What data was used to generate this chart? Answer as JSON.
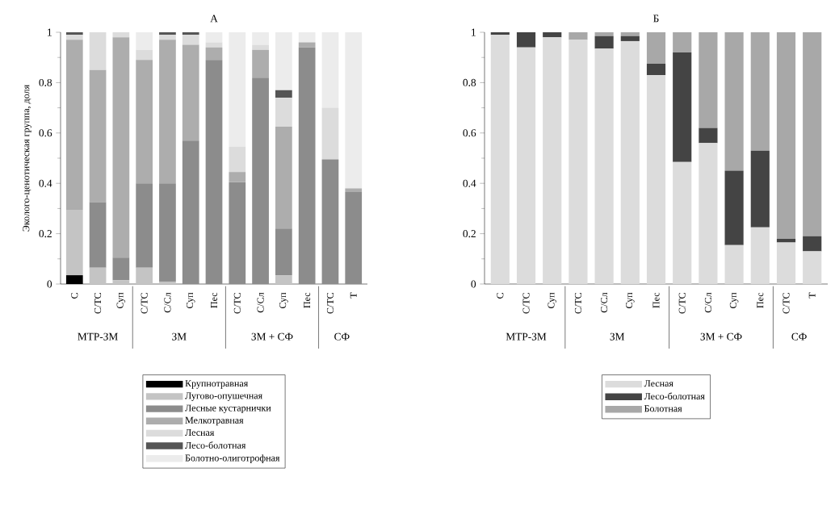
{
  "chart_data": [
    {
      "type": "bar",
      "stacked": true,
      "title": "А",
      "ylabel": "Эколого-ценотическая группа, доля",
      "categories": [
        "С",
        "С/ТС",
        "Суп",
        "С/ТС",
        "С/Сл",
        "Суп",
        "Пес",
        "С/ТС",
        "С/Сл",
        "Суп",
        "Пес",
        "С/ТС",
        "Т"
      ],
      "series": [
        {
          "name": "Крупнотравная",
          "color": "#000000",
          "values": [
            0.035,
            0,
            0,
            0,
            0,
            0,
            0,
            0,
            0,
            0,
            0,
            0,
            0
          ]
        },
        {
          "name": "Лугово-опушечная",
          "color": "#c4c4c4",
          "values": [
            0.26,
            0.065,
            0.015,
            0.065,
            0.01,
            0,
            0,
            0,
            0,
            0.035,
            0,
            0,
            0
          ]
        },
        {
          "name": "Лесные кустарнички",
          "color": "#8c8c8c",
          "values": [
            0,
            0.26,
            0.09,
            0.335,
            0.39,
            0.57,
            0.89,
            0.405,
            0.82,
            0.185,
            0.94,
            0.495,
            0.365
          ]
        },
        {
          "name": "Мелкотравная",
          "color": "#adadad",
          "values": [
            0.675,
            0.525,
            0.875,
            0.49,
            0.57,
            0.38,
            0.05,
            0.04,
            0.11,
            0.405,
            0.02,
            0,
            0.015
          ]
        },
        {
          "name": "Лесная",
          "color": "#dcdcdc",
          "values": [
            0.02,
            0.15,
            0.02,
            0.04,
            0.02,
            0.04,
            0.02,
            0.1,
            0.02,
            0.115,
            0,
            0.205,
            0
          ]
        },
        {
          "name": "Лесо-болотная",
          "color": "#555555",
          "values": [
            0.01,
            0,
            0,
            0,
            0.01,
            0.01,
            0,
            0,
            0,
            0.03,
            0,
            0,
            0
          ]
        },
        {
          "name": "Болотно-олиготрофная",
          "color": "#ececec",
          "values": [
            0,
            0,
            0,
            0.07,
            0,
            0,
            0.04,
            0.455,
            0.05,
            0.23,
            0.04,
            0.3,
            0.62
          ]
        }
      ],
      "ylim": [
        0,
        1
      ],
      "yticks": [
        0,
        0.2,
        0.4,
        0.6,
        0.8,
        1
      ],
      "legend": "bottom",
      "annotations": [
        "МТР-ЗМ",
        "ЗМ",
        "ЗМ + СФ",
        "СФ"
      ]
    },
    {
      "type": "bar",
      "stacked": true,
      "title": "Б",
      "categories": [
        "С",
        "С/ТС",
        "Суп",
        "С/ТС",
        "С/Сл",
        "Суп",
        "Пес",
        "С/ТС",
        "С/Сл",
        "Суп",
        "Пес",
        "С/ТС",
        "Т"
      ],
      "series": [
        {
          "name": "Лесная",
          "color": "#dcdcdc",
          "values": [
            0.99,
            0.94,
            0.98,
            0.97,
            0.935,
            0.965,
            0.83,
            0.485,
            0.56,
            0.155,
            0.225,
            0.165,
            0.13
          ]
        },
        {
          "name": "Лесо-болотная",
          "color": "#444444",
          "values": [
            0.01,
            0.06,
            0.02,
            0,
            0.05,
            0.02,
            0.045,
            0.435,
            0.06,
            0.295,
            0.305,
            0.015,
            0.06
          ]
        },
        {
          "name": "Болотная",
          "color": "#a8a8a8",
          "values": [
            0,
            0,
            0,
            0.03,
            0.015,
            0.015,
            0.125,
            0.08,
            0.38,
            0.55,
            0.47,
            0.82,
            0.81
          ]
        }
      ],
      "ylim": [
        0,
        1
      ],
      "yticks": [
        0,
        0.2,
        0.4,
        0.6,
        0.8,
        1
      ],
      "legend": "bottom",
      "annotations": [
        "МТР-ЗМ",
        "ЗМ",
        "ЗМ + СФ",
        "СФ"
      ]
    }
  ]
}
